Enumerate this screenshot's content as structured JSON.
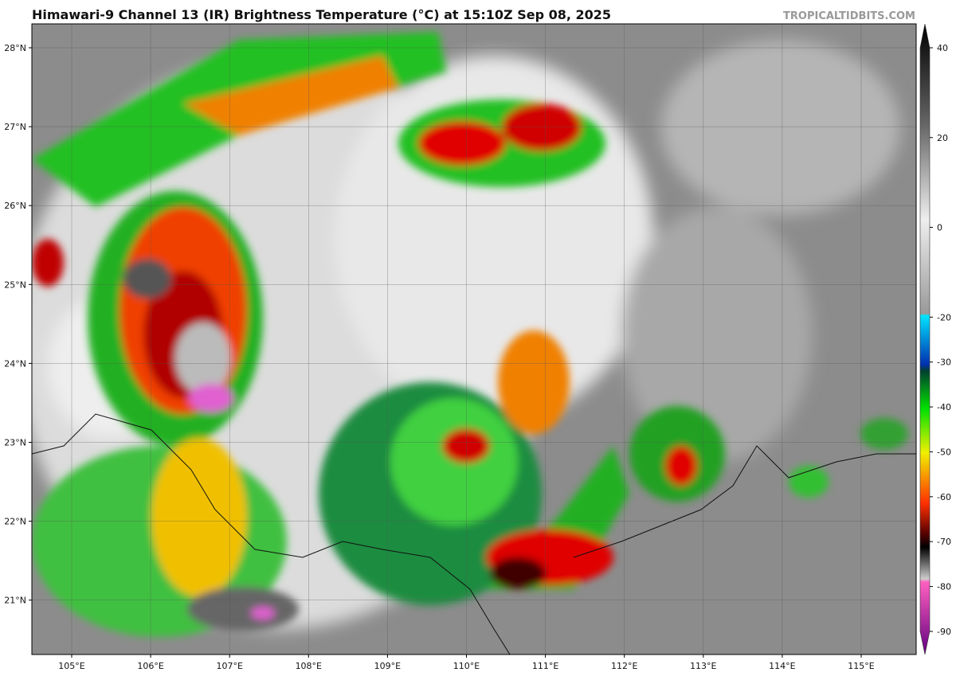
{
  "header": {
    "title": "Himawari-9 Channel 13 (IR) Brightness Temperature (°C) at 15:10Z Sep 08, 2025",
    "credit": "TROPICALTIDBITS.COM"
  },
  "map": {
    "lon_labels": [
      "105°E",
      "106°E",
      "107°E",
      "108°E",
      "109°E",
      "110°E",
      "111°E",
      "112°E",
      "113°E",
      "114°E",
      "115°E"
    ],
    "lat_labels": [
      "28°N",
      "27°N",
      "26°N",
      "25°N",
      "24°N",
      "23°N",
      "22°N",
      "21°N"
    ]
  },
  "colorbar": {
    "ticks": [
      40,
      20,
      0,
      -20,
      -30,
      -40,
      -50,
      -60,
      -70,
      -80,
      -90
    ]
  }
}
